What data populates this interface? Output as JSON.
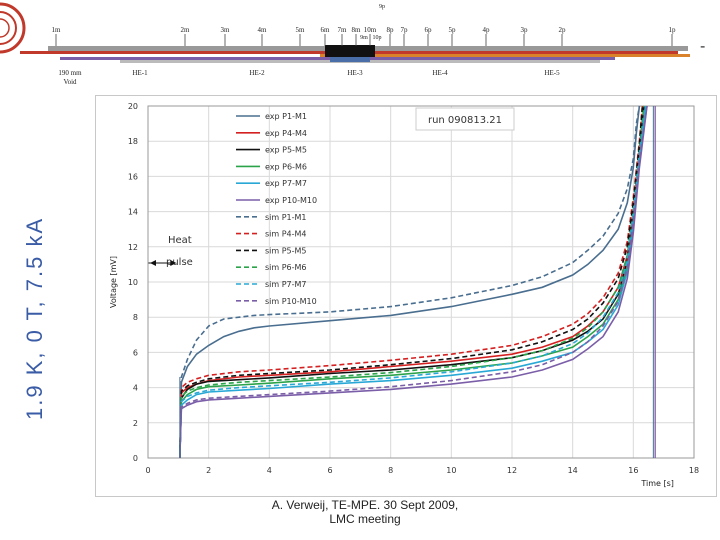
{
  "side_title": "1.9 K, 0 T, 7.5 kA",
  "top_dash": "-",
  "footer": {
    "line1": "A. Verweij, TE-MPE. 30 Sept 2009,",
    "line2": "LMC meeting"
  },
  "diagram": {
    "top_labels": [
      "1m",
      "2m",
      "3m",
      "4m",
      "5m",
      "6m",
      "7m",
      "8m",
      "10m",
      "8p",
      "7p",
      "6p",
      "5p",
      "4p",
      "3p",
      "2p",
      "1p"
    ],
    "extra_labels": [
      "9p",
      "9m",
      "10p"
    ],
    "bottom_labels": [
      "190 mm\nVoid",
      "HE-1",
      "HE-2",
      "HE-3",
      "HE-4",
      "HE-5"
    ]
  },
  "chart_data": {
    "type": "line",
    "run_label": "run 090813.21",
    "xlabel": "Time [s]",
    "ylabel": "Voltage [mV]",
    "xlim": [
      0,
      18
    ],
    "ylim": [
      0,
      20
    ],
    "xticks": [
      0,
      2,
      4,
      6,
      8,
      10,
      12,
      14,
      16,
      18
    ],
    "yticks": [
      0,
      2,
      4,
      6,
      8,
      10,
      12,
      14,
      16,
      18,
      20
    ],
    "heat_pulse_label": [
      "Heat",
      "pulse"
    ],
    "legend": [
      "exp P1-M1",
      "exp P4-M4",
      "exp P5-M5",
      "exp P6-M6",
      "exp P7-M7",
      "exp P10-M10",
      "sim P1-M1",
      "sim P4-M4",
      "sim P5-M5",
      "sim P6-M6",
      "sim P7-M7",
      "sim P10-M10"
    ],
    "series": [
      {
        "name": "exp P1-M1",
        "color": "#4a6e8f",
        "dash": false,
        "x": [
          1.05,
          1.1,
          1.3,
          1.6,
          2,
          2.5,
          3,
          3.5,
          4,
          6,
          8,
          10,
          12,
          13,
          14,
          14.5,
          15,
          15.5,
          15.8,
          16,
          16.1,
          16.2
        ],
        "y": [
          0,
          4.3,
          5.2,
          5.9,
          6.4,
          6.9,
          7.2,
          7.4,
          7.5,
          7.8,
          8.1,
          8.6,
          9.3,
          9.7,
          10.4,
          11,
          11.8,
          13,
          14.5,
          16.5,
          18.5,
          20
        ]
      },
      {
        "name": "exp P4-M4",
        "color": "#d42020",
        "dash": false,
        "x": [
          1.05,
          1.1,
          1.3,
          1.6,
          2,
          3,
          4,
          6,
          8,
          10,
          12,
          13,
          14,
          14.5,
          15,
          15.5,
          15.8,
          16,
          16.2,
          16.35
        ],
        "y": [
          0,
          3.7,
          4.0,
          4.2,
          4.4,
          4.6,
          4.7,
          4.9,
          5.2,
          5.5,
          5.9,
          6.3,
          6.9,
          7.5,
          8.3,
          9.7,
          11.5,
          14,
          17.5,
          20
        ]
      },
      {
        "name": "exp P5-M5",
        "color": "#111111",
        "dash": false,
        "x": [
          1.05,
          1.1,
          1.3,
          1.6,
          2,
          3,
          4,
          6,
          8,
          10,
          12,
          13,
          14,
          14.5,
          15,
          15.5,
          15.8,
          16,
          16.2,
          16.35
        ],
        "y": [
          0,
          3.4,
          3.9,
          4.2,
          4.35,
          4.45,
          4.55,
          4.8,
          5.0,
          5.3,
          5.7,
          6.1,
          6.7,
          7.2,
          7.9,
          9.3,
          11.2,
          13.8,
          17.2,
          20
        ]
      },
      {
        "name": "exp P6-M6",
        "color": "#2aa34a",
        "dash": false,
        "x": [
          1.05,
          1.1,
          1.3,
          1.6,
          2,
          3,
          4,
          6,
          8,
          10,
          12,
          13,
          14,
          14.5,
          15,
          15.5,
          15.8,
          16,
          16.2,
          16.4
        ],
        "y": [
          0,
          3.2,
          3.6,
          3.9,
          4.05,
          4.15,
          4.25,
          4.5,
          4.7,
          5.0,
          5.4,
          5.8,
          6.3,
          6.9,
          7.6,
          9.0,
          10.9,
          13.5,
          17,
          20
        ]
      },
      {
        "name": "exp P7-M7",
        "color": "#29a8d6",
        "dash": false,
        "x": [
          1.05,
          1.1,
          1.3,
          1.6,
          2,
          3,
          4,
          6,
          8,
          10,
          12,
          13,
          14,
          14.5,
          15,
          15.5,
          15.8,
          16,
          16.2,
          16.4
        ],
        "y": [
          0,
          3.0,
          3.3,
          3.6,
          3.75,
          3.85,
          3.95,
          4.2,
          4.4,
          4.7,
          5.1,
          5.5,
          6.0,
          6.6,
          7.3,
          8.7,
          10.6,
          13.2,
          16.8,
          20
        ]
      },
      {
        "name": "exp P10-M10",
        "color": "#7b5ea8",
        "dash": false,
        "x": [
          1.05,
          1.1,
          1.3,
          1.6,
          2,
          3,
          4,
          6,
          8,
          10,
          12,
          13,
          14,
          14.5,
          15,
          15.5,
          15.8,
          16,
          16.2,
          16.45
        ],
        "y": [
          0,
          2.8,
          3.0,
          3.2,
          3.3,
          3.4,
          3.5,
          3.7,
          3.9,
          4.2,
          4.6,
          5.0,
          5.6,
          6.2,
          6.9,
          8.3,
          10.2,
          12.8,
          16.5,
          20
        ]
      },
      {
        "name": "sim P1-M1",
        "color": "#4a6e8f",
        "dash": true,
        "x": [
          1.05,
          1.1,
          1.3,
          1.6,
          2,
          2.5,
          3,
          3.5,
          4,
          6,
          8,
          10,
          12,
          13,
          14,
          14.5,
          15,
          15.5,
          15.8,
          16,
          16.1,
          16.2
        ],
        "y": [
          0,
          4.6,
          5.6,
          6.7,
          7.5,
          7.9,
          8.0,
          8.1,
          8.15,
          8.3,
          8.6,
          9.1,
          9.8,
          10.3,
          11.1,
          11.8,
          12.6,
          13.9,
          15.3,
          17,
          19,
          20
        ]
      },
      {
        "name": "sim P4-M4",
        "color": "#d42020",
        "dash": true,
        "x": [
          1.05,
          1.1,
          1.3,
          1.6,
          2,
          3,
          4,
          6,
          8,
          10,
          12,
          13,
          14,
          14.5,
          15,
          15.5,
          15.8,
          16,
          16.2,
          16.3
        ],
        "y": [
          0,
          4.0,
          4.3,
          4.5,
          4.7,
          4.9,
          5.0,
          5.25,
          5.55,
          5.9,
          6.4,
          6.9,
          7.6,
          8.2,
          9.1,
          10.5,
          12.3,
          14.8,
          18,
          20
        ]
      },
      {
        "name": "sim P5-M5",
        "color": "#111111",
        "dash": true,
        "x": [
          1.05,
          1.1,
          1.3,
          1.6,
          2,
          3,
          4,
          6,
          8,
          10,
          12,
          13,
          14,
          14.5,
          15,
          15.5,
          15.8,
          16,
          16.2,
          16.3
        ],
        "y": [
          0,
          3.8,
          4.1,
          4.3,
          4.5,
          4.7,
          4.8,
          5.0,
          5.3,
          5.65,
          6.15,
          6.6,
          7.3,
          7.9,
          8.8,
          10.2,
          12,
          14.5,
          17.8,
          20
        ]
      },
      {
        "name": "sim P6-M6",
        "color": "#2aa34a",
        "dash": true,
        "x": [
          1.05,
          1.1,
          1.3,
          1.6,
          2,
          3,
          4,
          6,
          8,
          10,
          12,
          13,
          14,
          14.5,
          15,
          15.5,
          15.8,
          16,
          16.2,
          16.35
        ],
        "y": [
          0,
          3.5,
          3.8,
          4.0,
          4.15,
          4.3,
          4.4,
          4.6,
          4.85,
          5.2,
          5.7,
          6.1,
          6.8,
          7.4,
          8.3,
          9.7,
          11.5,
          14,
          17.4,
          20
        ]
      },
      {
        "name": "sim P7-M7",
        "color": "#29a8d6",
        "dash": true,
        "x": [
          1.05,
          1.1,
          1.3,
          1.6,
          2,
          3,
          4,
          6,
          8,
          10,
          12,
          13,
          14,
          14.5,
          15,
          15.5,
          15.8,
          16,
          16.2,
          16.4
        ],
        "y": [
          0,
          3.2,
          3.5,
          3.7,
          3.85,
          4.0,
          4.1,
          4.3,
          4.55,
          4.9,
          5.4,
          5.8,
          6.5,
          7.1,
          8.0,
          9.4,
          11.2,
          13.8,
          17.2,
          20
        ]
      },
      {
        "name": "sim P10-M10",
        "color": "#7b5ea8",
        "dash": true,
        "x": [
          1.05,
          1.1,
          1.3,
          1.6,
          2,
          3,
          4,
          6,
          8,
          10,
          12,
          13,
          14,
          14.5,
          15,
          15.5,
          15.8,
          16,
          16.2,
          16.45
        ],
        "y": [
          0,
          2.9,
          3.1,
          3.3,
          3.4,
          3.5,
          3.6,
          3.8,
          4.05,
          4.4,
          4.9,
          5.3,
          6.0,
          6.6,
          7.5,
          8.9,
          10.8,
          13.4,
          16.9,
          20
        ]
      }
    ]
  }
}
